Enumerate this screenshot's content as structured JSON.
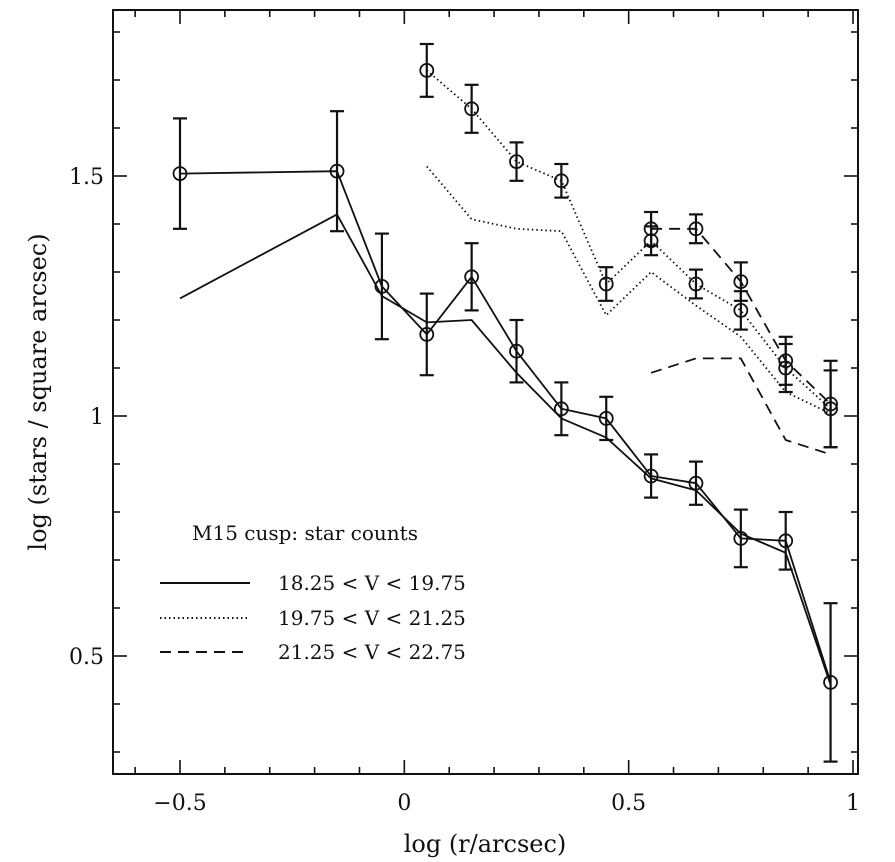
{
  "chart_data": {
    "type": "line",
    "title": "",
    "xlabel": "log (r/arcsec)",
    "ylabel": "log (stars / square arcsec)",
    "xlim": [
      -0.62,
      1.03
    ],
    "ylim": [
      0.25,
      1.82
    ],
    "x_ticks": [
      -0.5,
      0,
      0.5,
      1
    ],
    "x_tick_labels": [
      "−0.5",
      "0",
      "0.5",
      "1"
    ],
    "y_ticks": [
      0.5,
      1,
      1.5
    ],
    "y_tick_labels": [
      "0.5",
      "1",
      "1.5"
    ],
    "legend": {
      "title": "M15 cusp: star counts",
      "placement": "lower-left",
      "entries": [
        {
          "label": "18.25 < V < 19.75",
          "style": "solid"
        },
        {
          "label": "19.75 < V < 21.25",
          "style": "dotted"
        },
        {
          "label": "21.25 < V < 22.75",
          "style": "dashed"
        }
      ]
    },
    "series": [
      {
        "style": "solid",
        "marker": "circle",
        "x": [
          -0.5,
          -0.15,
          -0.05,
          0.05,
          0.15,
          0.25,
          0.35,
          0.45,
          0.55,
          0.65,
          0.75,
          0.85,
          0.95
        ],
        "y": [
          1.505,
          1.51,
          1.27,
          1.17,
          1.29,
          1.135,
          1.015,
          0.995,
          0.875,
          0.86,
          0.745,
          0.74,
          0.445
        ],
        "err": [
          0.115,
          0.125,
          0.11,
          0.085,
          0.07,
          0.065,
          0.055,
          0.045,
          0.045,
          0.045,
          0.06,
          0.06,
          0.165
        ]
      },
      {
        "style": "solid",
        "marker": "none",
        "x": [
          -0.5,
          -0.15,
          -0.05,
          0.05,
          0.15,
          0.25,
          0.35,
          0.45,
          0.55,
          0.65,
          0.75,
          0.85,
          0.95
        ],
        "y": [
          1.245,
          1.42,
          1.25,
          1.195,
          1.2,
          1.09,
          0.995,
          0.955,
          0.87,
          0.845,
          0.755,
          0.715,
          0.44
        ]
      },
      {
        "style": "dotted",
        "marker": "circle",
        "x": [
          0.05,
          0.15,
          0.25,
          0.35,
          0.45,
          0.55,
          0.65,
          0.75,
          0.85,
          0.95
        ],
        "y": [
          1.72,
          1.64,
          1.53,
          1.49,
          1.275,
          1.365,
          1.275,
          1.22,
          1.1,
          1.015
        ],
        "err": [
          0.055,
          0.05,
          0.04,
          0.035,
          0.035,
          0.03,
          0.03,
          0.04,
          0.05,
          0.08
        ]
      },
      {
        "style": "dotted",
        "marker": "none",
        "x": [
          0.05,
          0.15,
          0.25,
          0.35,
          0.45,
          0.55,
          0.65,
          0.75,
          0.85,
          0.95
        ],
        "y": [
          1.52,
          1.41,
          1.39,
          1.385,
          1.21,
          1.3,
          1.23,
          1.165,
          1.05,
          1.005
        ]
      },
      {
        "style": "dashed",
        "marker": "circle",
        "x": [
          0.55,
          0.65,
          0.75,
          0.85,
          0.95
        ],
        "y": [
          1.39,
          1.39,
          1.28,
          1.115,
          1.025
        ],
        "err": [
          0.035,
          0.03,
          0.04,
          0.05,
          0.09
        ]
      },
      {
        "style": "dashed",
        "marker": "none",
        "x": [
          0.55,
          0.65,
          0.75,
          0.85,
          0.95
        ],
        "y": [
          1.09,
          1.12,
          1.12,
          0.95,
          0.92
        ]
      }
    ]
  }
}
